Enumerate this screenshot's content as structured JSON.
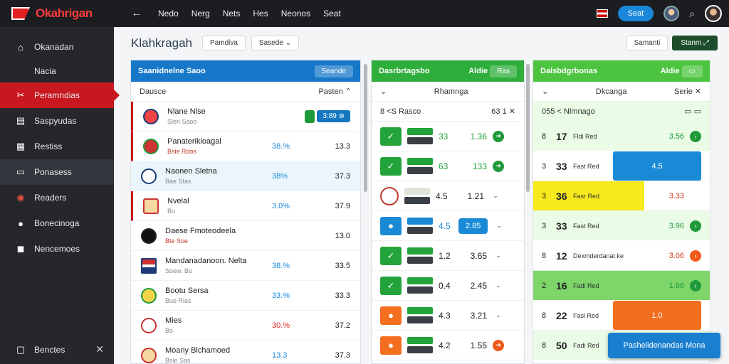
{
  "app": {
    "logo": "Okahrigan",
    "nav": [
      "Nedo",
      "Nerg",
      "Nets",
      "Hes",
      "Neonos",
      "Seat"
    ],
    "cta": "Seat"
  },
  "sidebar": {
    "items": [
      {
        "label": "Okanadan",
        "icon": "home-icon"
      },
      {
        "label": "Nacia",
        "icon": ""
      },
      {
        "label": "Peramndias",
        "icon": "tools-icon"
      },
      {
        "label": "Saspyudas",
        "icon": "calendar-icon"
      },
      {
        "label": "Restiss",
        "icon": "grid-icon"
      },
      {
        "label": "Ponasess",
        "icon": "card-icon"
      },
      {
        "label": "Readers",
        "icon": "record-icon"
      },
      {
        "label": "Bonecinoga",
        "icon": "chat-icon"
      },
      {
        "label": "Nencemoes",
        "icon": "square-icon"
      }
    ],
    "bottom": "Benctes"
  },
  "header": {
    "title": "Klahkragah",
    "btn1": "Pamdiva",
    "btn2": "Sasede",
    "right1": "Samanti",
    "right2": "Stanm"
  },
  "panel1": {
    "title": "Saanidnelne Saoo",
    "btn": "Seande",
    "sub_left": "Dausce",
    "sub_right": "Pasten",
    "rows": [
      {
        "name": "Nlane Nlse",
        "sub": "Slen Saoo",
        "pct": "",
        "val": "",
        "ctrl": "3:89"
      },
      {
        "name": "Panaterikioagal",
        "sub": "Bsie Rdos",
        "pct": "38.%",
        "val": "13.3"
      },
      {
        "name": "Naonen Sletna",
        "sub": "Bae Stas",
        "pct": "38%",
        "val": "37.3"
      },
      {
        "name": "Nvelal",
        "sub": "Bo",
        "pct": "3.0%",
        "val": "37.9"
      },
      {
        "name": "Daese Fmoteodeela",
        "sub": "Bte Soe",
        "pct": "",
        "val": "13.0"
      },
      {
        "name": "Mandanadanoon. Nelta",
        "sub": "Soew. Bo",
        "pct": "38.%",
        "val": "33.5"
      },
      {
        "name": "Bootu Sersa",
        "sub": "Bue Rias",
        "pct": "33.%",
        "val": "33.3"
      },
      {
        "name": "Mies",
        "sub": "Bo",
        "pct": "30.%",
        "val": "37.2"
      },
      {
        "name": "Moany Blchamoed",
        "sub": "Bsie Sas",
        "pct": "13.3",
        "val": "37.3"
      }
    ]
  },
  "panel2": {
    "title": "Dasrbrtagsbo",
    "right": "Aldie",
    "btn": "Ras",
    "sub_title": "Rhamnga",
    "head_left": "8 <S Rasco",
    "head_right": "63 1",
    "rows": [
      {
        "kind": "green",
        "n": "33",
        "v": "1.36",
        "dot": "g"
      },
      {
        "kind": "green",
        "n": "63",
        "v": "133",
        "dot": "g"
      },
      {
        "kind": "crest",
        "n": "4.5",
        "v": "1.21",
        "dot": "n"
      },
      {
        "kind": "blue",
        "n": "4.5",
        "v": "2.85",
        "dot": "n",
        "chip": true
      },
      {
        "kind": "green",
        "n": "1.2",
        "v": "3.65",
        "dot": "n"
      },
      {
        "kind": "green",
        "n": "0.4",
        "v": "2.45",
        "dot": "n"
      },
      {
        "kind": "orange",
        "n": "4.3",
        "v": "3.21",
        "dot": "n"
      },
      {
        "kind": "orange",
        "n": "4.2",
        "v": "1.55",
        "dot": "o"
      }
    ]
  },
  "panel3": {
    "title": "Dalsbdgrbonas",
    "right": "Aldie",
    "sub_title": "Dkcanga",
    "sub_right": "Serie",
    "head": "055 < Nlmnago",
    "rows": [
      {
        "idx": "8",
        "big": "17",
        "meta": "Fldi Red",
        "val": "3.56",
        "cls": "green"
      },
      {
        "idx": "3",
        "big": "33",
        "meta": "Fast Red",
        "val": "4.5",
        "cls": "green",
        "overlay": "blue"
      },
      {
        "idx": "3",
        "big": "36",
        "meta": "Fasr Red",
        "val": "3.33",
        "cls": "red",
        "overlay": "yellow"
      },
      {
        "idx": "3",
        "big": "33",
        "meta": "Fast Red",
        "val": "3.96",
        "cls": "green"
      },
      {
        "idx": "8",
        "big": "12",
        "meta": "Dexmderdanat.ke",
        "val": "3.06",
        "cls": "red"
      },
      {
        "idx": "2",
        "big": "16",
        "meta": "Fadi Red",
        "val": "1.66",
        "cls": "green"
      },
      {
        "idx": "8",
        "big": "22",
        "meta": "Fasl Red",
        "val": "1.0",
        "cls": "",
        "overlay": "orange"
      },
      {
        "idx": "8",
        "big": "50",
        "meta": "Fadi Red",
        "val": "",
        "cls": ""
      }
    ]
  },
  "toast": "Pashelidenandas Mona"
}
